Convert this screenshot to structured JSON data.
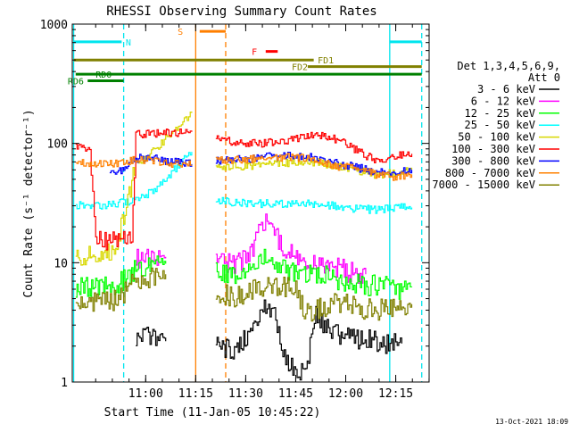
{
  "chart_data": {
    "type": "line",
    "title": "RHESSI Observing Summary Count Rates",
    "xlabel": "Start Time (11-Jan-05 10:45:22)",
    "ylabel": "Count Rate (s⁻¹ detector⁻¹)",
    "y_scale": "log",
    "ylim": [
      1,
      1000
    ],
    "xlim_minutes": [
      10.633,
      12.417
    ],
    "x_ticks": [
      "11:00",
      "11:15",
      "11:30",
      "11:45",
      "12:00",
      "12:15"
    ],
    "y_ticks": [
      "1",
      "10",
      "100",
      "1000"
    ],
    "legend_header": [
      "Det 1,3,4,5,6,9,",
      "Att 0"
    ],
    "legend_position": "right",
    "footer_date": "13-Oct-2021 18:09",
    "series": [
      {
        "name": "3 - 6 keV",
        "color": "#000000",
        "segments": [
          {
            "points": [
              [
                10.95,
                2.3
              ],
              [
                11.0,
                2.5
              ],
              [
                11.05,
                2.4
              ],
              [
                11.1,
                2.2
              ]
            ]
          },
          {
            "points": [
              [
                11.35,
                2.0
              ],
              [
                11.45,
                1.8
              ],
              [
                11.55,
                3.0
              ],
              [
                11.6,
                4.5
              ],
              [
                11.65,
                3.5
              ],
              [
                11.7,
                1.5
              ],
              [
                11.75,
                1.2
              ],
              [
                11.8,
                1.3
              ],
              [
                11.85,
                3.5
              ],
              [
                11.9,
                3.0
              ],
              [
                11.95,
                2.5
              ],
              [
                12.05,
                2.3
              ],
              [
                12.15,
                2.2
              ],
              [
                12.2,
                2.1
              ],
              [
                12.25,
                2.1
              ],
              [
                12.28,
                2.1
              ]
            ]
          }
        ]
      },
      {
        "name": "6 - 12 keV",
        "color": "#ff00ff",
        "segments": [
          {
            "points": [
              [
                10.95,
                10.5
              ],
              [
                11.0,
                11.0
              ],
              [
                11.05,
                11.0
              ],
              [
                11.1,
                11.2
              ]
            ]
          },
          {
            "points": [
              [
                11.35,
                11.0
              ],
              [
                11.4,
                9.8
              ],
              [
                11.45,
                10.0
              ],
              [
                11.5,
                11.0
              ],
              [
                11.55,
                15.0
              ],
              [
                11.6,
                24.0
              ],
              [
                11.65,
                17.0
              ],
              [
                11.7,
                12.0
              ],
              [
                11.8,
                10.5
              ],
              [
                11.9,
                10.0
              ],
              [
                12.0,
                8.5
              ],
              [
                12.05,
                8.0
              ],
              [
                12.1,
                8.0
              ]
            ]
          }
        ]
      },
      {
        "name": "12 - 25 keV",
        "color": "#00ff00",
        "segments": [
          {
            "points": [
              [
                10.65,
                6.2
              ],
              [
                10.75,
                6.3
              ],
              [
                10.85,
                6.3
              ],
              [
                10.95,
                9.0
              ],
              [
                11.0,
                9.3
              ],
              [
                11.05,
                9.5
              ],
              [
                11.1,
                9.8
              ]
            ]
          },
          {
            "points": [
              [
                11.35,
                8.5
              ],
              [
                11.4,
                7.8
              ],
              [
                11.5,
                8.5
              ],
              [
                11.55,
                9.5
              ],
              [
                11.6,
                11.0
              ],
              [
                11.65,
                10.0
              ],
              [
                11.7,
                8.5
              ],
              [
                11.8,
                8.0
              ],
              [
                11.9,
                7.8
              ],
              [
                12.0,
                6.8
              ],
              [
                12.1,
                6.5
              ],
              [
                12.2,
                6.4
              ],
              [
                12.28,
                6.0
              ],
              [
                12.33,
                6.3
              ]
            ]
          }
        ]
      },
      {
        "name": "25 - 50 keV",
        "color": "#00ffff",
        "segments": [
          {
            "points": [
              [
                10.65,
                30.0
              ],
              [
                10.75,
                30.0
              ],
              [
                10.82,
                31.0
              ],
              [
                10.87,
                32.0
              ],
              [
                10.92,
                32.0
              ],
              [
                10.95,
                33.0
              ],
              [
                11.0,
                37.0
              ],
              [
                11.05,
                42.0
              ],
              [
                11.1,
                50.0
              ],
              [
                11.15,
                62.0
              ],
              [
                11.2,
                75.0
              ],
              [
                11.23,
                85.0
              ]
            ]
          },
          {
            "points": [
              [
                11.35,
                34.0
              ],
              [
                11.45,
                32.0
              ],
              [
                11.55,
                31.5
              ],
              [
                11.65,
                31.0
              ],
              [
                11.75,
                31.0
              ],
              [
                11.85,
                31.0
              ],
              [
                11.95,
                30.0
              ],
              [
                12.05,
                28.0
              ],
              [
                12.15,
                28.0
              ],
              [
                12.25,
                29.0
              ],
              [
                12.33,
                29.0
              ]
            ]
          }
        ]
      },
      {
        "name": "50 - 100 keV",
        "color": "#d8d800",
        "segments": [
          {
            "points": [
              [
                10.65,
                11.0
              ],
              [
                10.75,
                11.5
              ],
              [
                10.85,
                12.5
              ],
              [
                10.95,
                68.0
              ],
              [
                11.0,
                78.0
              ],
              [
                11.05,
                92.0
              ],
              [
                11.1,
                110.0
              ],
              [
                11.15,
                130.0
              ],
              [
                11.2,
                160.0
              ],
              [
                11.23,
                180.0
              ]
            ]
          },
          {
            "points": [
              [
                11.35,
                65.0
              ],
              [
                11.45,
                64.0
              ],
              [
                11.55,
                66.0
              ],
              [
                11.65,
                68.0
              ],
              [
                11.75,
                70.0
              ],
              [
                11.85,
                70.0
              ],
              [
                11.95,
                64.0
              ],
              [
                12.05,
                60.0
              ],
              [
                12.15,
                55.0
              ],
              [
                12.25,
                56.0
              ],
              [
                12.33,
                60.0
              ]
            ]
          }
        ]
      },
      {
        "name": "100 - 300 keV",
        "color": "#ff0000",
        "segments": [
          {
            "points": [
              [
                10.65,
                95.0
              ],
              [
                10.72,
                90.0
              ],
              [
                10.75,
                15.0
              ],
              [
                10.85,
                15.5
              ],
              [
                10.93,
                16.0
              ],
              [
                10.95,
                120.0
              ],
              [
                11.05,
                122.0
              ],
              [
                11.15,
                122.0
              ],
              [
                11.2,
                124.0
              ],
              [
                11.23,
                125.0
              ]
            ]
          },
          {
            "points": [
              [
                11.35,
                110.0
              ],
              [
                11.4,
                105.0
              ],
              [
                11.5,
                100.0
              ],
              [
                11.6,
                100.0
              ],
              [
                11.7,
                105.0
              ],
              [
                11.8,
                115.0
              ],
              [
                11.9,
                115.0
              ],
              [
                12.0,
                100.0
              ],
              [
                12.05,
                88.0
              ],
              [
                12.15,
                72.0
              ],
              [
                12.25,
                78.0
              ],
              [
                12.33,
                82.0
              ]
            ]
          }
        ]
      },
      {
        "name": "300 - 800 keV",
        "color": "#0000ff",
        "segments": [
          {
            "points": [
              [
                10.82,
                55.0
              ],
              [
                10.87,
                58.0
              ],
              [
                10.95,
                75.0
              ],
              [
                11.05,
                76.0
              ],
              [
                11.12,
                70.0
              ],
              [
                11.2,
                68.0
              ],
              [
                11.23,
                67.0
              ]
            ]
          },
          {
            "points": [
              [
                11.35,
                72.0
              ],
              [
                11.45,
                73.0
              ],
              [
                11.55,
                75.0
              ],
              [
                11.65,
                78.0
              ],
              [
                11.75,
                78.0
              ],
              [
                11.85,
                76.0
              ],
              [
                11.95,
                68.0
              ],
              [
                12.05,
                63.0
              ],
              [
                12.15,
                58.0
              ],
              [
                12.25,
                58.0
              ],
              [
                12.33,
                60.0
              ]
            ]
          }
        ]
      },
      {
        "name": "800 - 7000 keV",
        "color": "#ff8000",
        "segments": [
          {
            "points": [
              [
                10.65,
                70.0
              ],
              [
                10.75,
                68.0
              ],
              [
                10.85,
                68.0
              ],
              [
                10.95,
                72.0
              ],
              [
                11.05,
                72.0
              ],
              [
                11.15,
                67.0
              ],
              [
                11.23,
                66.0
              ]
            ]
          },
          {
            "points": [
              [
                11.35,
                72.0
              ],
              [
                11.45,
                72.0
              ],
              [
                11.55,
                74.0
              ],
              [
                11.65,
                76.0
              ],
              [
                11.75,
                76.0
              ],
              [
                11.85,
                74.0
              ],
              [
                11.95,
                65.0
              ],
              [
                12.05,
                61.0
              ],
              [
                12.15,
                55.0
              ],
              [
                12.25,
                52.0
              ],
              [
                12.33,
                55.0
              ]
            ]
          }
        ]
      },
      {
        "name": "7000 - 15000 keV",
        "color": "#808000",
        "segments": [
          {
            "points": [
              [
                10.65,
                4.6
              ],
              [
                10.75,
                4.8
              ],
              [
                10.85,
                4.8
              ],
              [
                10.95,
                7.0
              ],
              [
                11.0,
                7.5
              ],
              [
                11.05,
                7.8
              ],
              [
                11.1,
                8.0
              ]
            ]
          },
          {
            "points": [
              [
                11.35,
                5.5
              ],
              [
                11.45,
                5.2
              ],
              [
                11.55,
                6.0
              ],
              [
                11.65,
                6.5
              ],
              [
                11.75,
                6.0
              ],
              [
                11.8,
                3.8
              ],
              [
                11.85,
                4.0
              ],
              [
                11.95,
                4.8
              ],
              [
                12.05,
                4.2
              ],
              [
                12.15,
                4.0
              ],
              [
                12.25,
                4.3
              ],
              [
                12.33,
                4.5
              ]
            ]
          }
        ]
      }
    ],
    "flags": [
      {
        "label": "N",
        "color": "#00e5ee",
        "level": 710,
        "start": 10.64,
        "end": 10.88,
        "label_at": 10.9
      },
      {
        "label": "N",
        "color": "#00e5ee",
        "level": 710,
        "start": 12.22,
        "end": 12.38
      },
      {
        "label": "S",
        "color": "#ff7f00",
        "level": 870,
        "start": 11.27,
        "end": 11.4,
        "label_at": 11.16
      },
      {
        "label": "F",
        "color": "#ff0000",
        "level": 590,
        "start": 11.6,
        "end": 11.66,
        "label_at": 11.53
      },
      {
        "label": "FD1",
        "color": "#808000",
        "level": 500,
        "start": 10.64,
        "end": 11.84,
        "label_at": 11.86
      },
      {
        "label": "FD2",
        "color": "#808000",
        "level": 440,
        "start": 11.81,
        "end": 12.38,
        "label_at": 11.73
      },
      {
        "label": "RD0",
        "color": "#008000",
        "level": 380,
        "start": 10.65,
        "end": 12.38,
        "label_at": 10.75
      },
      {
        "label": "RD6",
        "color": "#008000",
        "level": 335,
        "start": 10.71,
        "end": 10.89,
        "label_at": 10.61
      }
    ],
    "vlines": [
      {
        "x": 10.64,
        "color": "#00e5ee",
        "style": "solid"
      },
      {
        "x": 10.89,
        "color": "#00e5ee",
        "style": "dashed"
      },
      {
        "x": 11.25,
        "color": "#ff7f00",
        "style": "solid"
      },
      {
        "x": 11.4,
        "color": "#ff7f00",
        "style": "dashed"
      },
      {
        "x": 12.22,
        "color": "#00e5ee",
        "style": "solid"
      },
      {
        "x": 12.38,
        "color": "#00e5ee",
        "style": "dashed"
      }
    ]
  }
}
